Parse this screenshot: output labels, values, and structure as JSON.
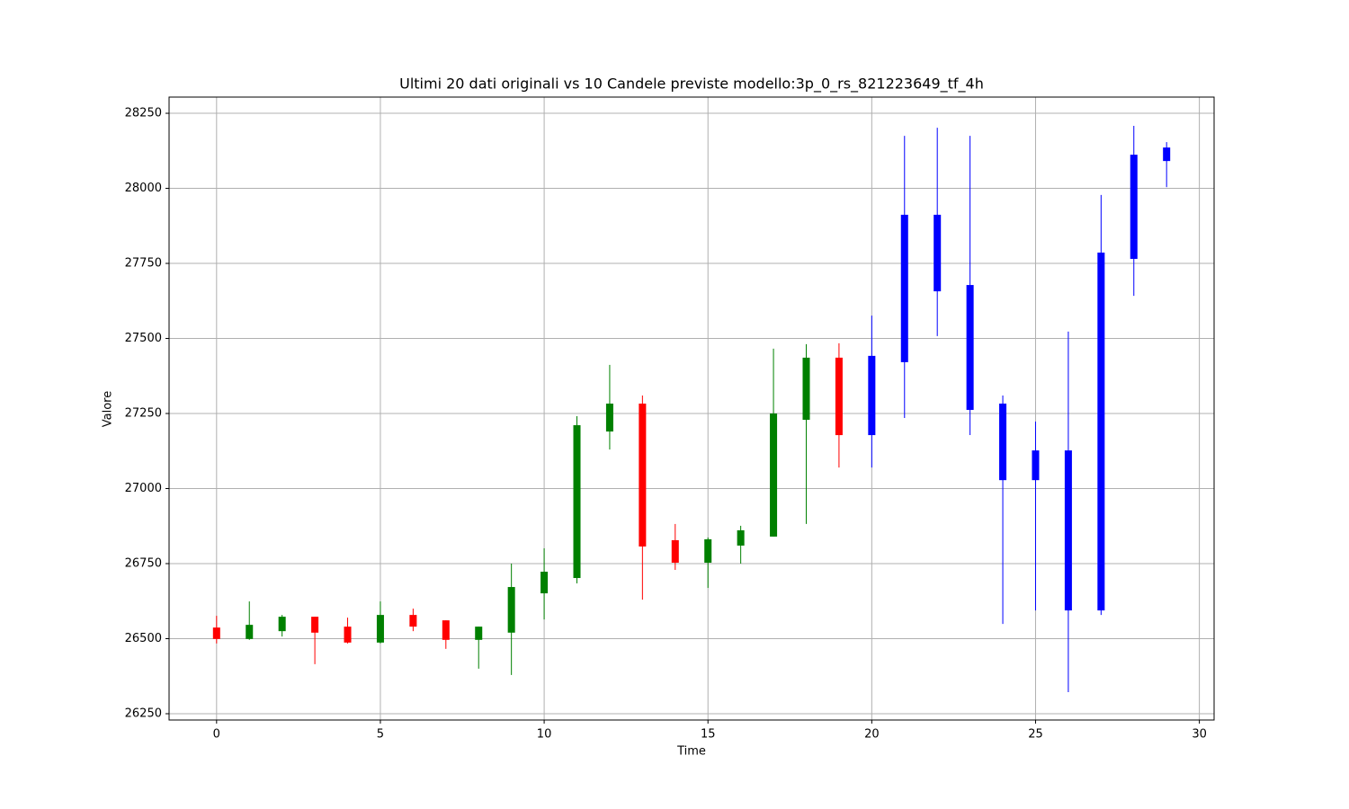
{
  "chart_data": {
    "type": "candlestick",
    "title": "Ultimi 20 dati originali vs 10 Candele previste modello:3p_0_rs_821223649_tf_4h",
    "xlabel": "Time",
    "ylabel": "Valore",
    "xlim": [
      -1.45,
      30.45
    ],
    "ylim": [
      26229,
      28304
    ],
    "xticks": [
      0,
      5,
      10,
      15,
      20,
      25,
      30
    ],
    "yticks": [
      26250,
      26500,
      26750,
      27000,
      27250,
      27500,
      27750,
      28000,
      28250
    ],
    "grid": true,
    "series": [
      {
        "up_color": "green",
        "down_color": "red",
        "x": [
          0,
          1,
          2,
          3,
          4,
          5,
          6,
          7,
          8,
          9,
          10,
          11,
          12,
          13,
          14,
          15,
          16,
          17,
          18,
          19
        ],
        "open": [
          26537,
          26499,
          26525,
          26573,
          26540,
          26487,
          26579,
          26561,
          26496,
          26520,
          26651,
          26702,
          27190,
          27283,
          26828,
          26753,
          26810,
          26840,
          27229,
          27436
        ],
        "high": [
          26576,
          26624,
          26579,
          26573,
          26570,
          26624,
          26600,
          26561,
          26540,
          26750,
          26801,
          27241,
          27412,
          27310,
          26882,
          26837,
          26876,
          27466,
          27481,
          27484
        ],
        "low": [
          26484,
          26496,
          26507,
          26415,
          26484,
          26484,
          26525,
          26466,
          26400,
          26379,
          26564,
          26684,
          27130,
          26630,
          26729,
          26669,
          26750,
          26840,
          26882,
          27070
        ],
        "close": [
          26499,
          26546,
          26573,
          26520,
          26487,
          26579,
          26540,
          26496,
          26540,
          26672,
          26723,
          27211,
          27283,
          26807,
          26753,
          26831,
          26861,
          27250,
          27436,
          27178
        ]
      },
      {
        "color": "blue",
        "x": [
          20,
          21,
          22,
          23,
          24,
          25,
          26,
          27,
          28,
          29
        ],
        "open": [
          27178,
          27421,
          27912,
          27678,
          27283,
          27028,
          27127,
          26594,
          27765,
          28091
        ],
        "high": [
          27576,
          28175,
          28202,
          28175,
          27310,
          27223,
          27523,
          27978,
          28208,
          28154
        ],
        "low": [
          27070,
          27235,
          27508,
          27178,
          26549,
          26594,
          26322,
          26579,
          27642,
          28004
        ],
        "close": [
          27442,
          27912,
          27657,
          27262,
          27028,
          27127,
          26594,
          27786,
          28112,
          28136
        ]
      }
    ]
  }
}
